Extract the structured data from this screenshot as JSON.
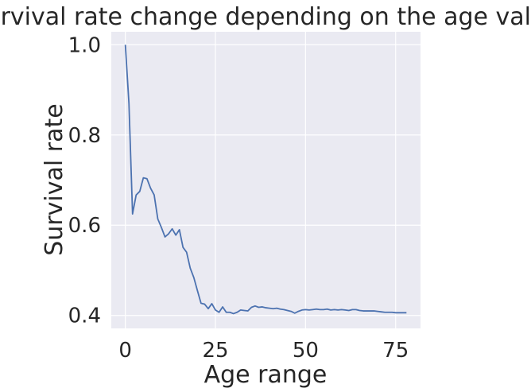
{
  "chart_data": {
    "type": "line",
    "title": "Survival rate change depending on the age value",
    "xlabel": "Age range",
    "ylabel": "Survival rate",
    "xlim": [
      -3.9,
      81.9
    ],
    "ylim": [
      0.3713,
      1.0287
    ],
    "xticks": [
      0,
      25,
      50,
      75
    ],
    "yticks": [
      0.4,
      0.6,
      0.8,
      1.0
    ],
    "xtick_labels": [
      "0",
      "25",
      "50",
      "75"
    ],
    "ytick_labels": [
      "0.4",
      "0.6",
      "0.8",
      "1.0"
    ],
    "grid": true,
    "legend": "none",
    "colors": {
      "background": "#eaeaf2",
      "grid": "#ffffff",
      "line": "#4c72b0",
      "text": "#262626"
    },
    "series": [
      {
        "x": [
          0,
          1,
          2,
          3,
          4,
          5,
          6,
          7,
          8,
          9,
          10,
          11,
          12,
          13,
          14,
          15,
          16,
          17,
          18,
          19,
          20,
          21,
          22,
          23,
          24,
          25,
          26,
          27,
          28,
          29,
          30,
          31,
          32,
          33,
          34,
          35,
          36,
          37,
          38,
          39,
          40,
          41,
          42,
          43,
          44,
          45,
          46,
          47,
          48,
          49,
          50,
          51,
          52,
          53,
          54,
          55,
          56,
          57,
          58,
          59,
          60,
          61,
          62,
          63,
          64,
          65,
          66,
          67,
          68,
          69,
          70,
          71,
          72,
          73,
          74,
          75,
          76,
          77,
          78
        ],
        "values": [
          1.0,
          0.87,
          0.625,
          0.667,
          0.675,
          0.705,
          0.703,
          0.682,
          0.667,
          0.614,
          0.595,
          0.574,
          0.581,
          0.592,
          0.578,
          0.59,
          0.551,
          0.54,
          0.505,
          0.484,
          0.455,
          0.427,
          0.425,
          0.415,
          0.426,
          0.412,
          0.407,
          0.419,
          0.407,
          0.407,
          0.404,
          0.407,
          0.412,
          0.411,
          0.41,
          0.418,
          0.421,
          0.418,
          0.419,
          0.417,
          0.416,
          0.415,
          0.416,
          0.414,
          0.413,
          0.411,
          0.409,
          0.405,
          0.409,
          0.412,
          0.413,
          0.412,
          0.413,
          0.414,
          0.413,
          0.413,
          0.414,
          0.412,
          0.413,
          0.412,
          0.413,
          0.412,
          0.411,
          0.413,
          0.413,
          0.411,
          0.41,
          0.41,
          0.41,
          0.41,
          0.409,
          0.408,
          0.407,
          0.407,
          0.407,
          0.406,
          0.406,
          0.406,
          0.406
        ]
      }
    ]
  }
}
